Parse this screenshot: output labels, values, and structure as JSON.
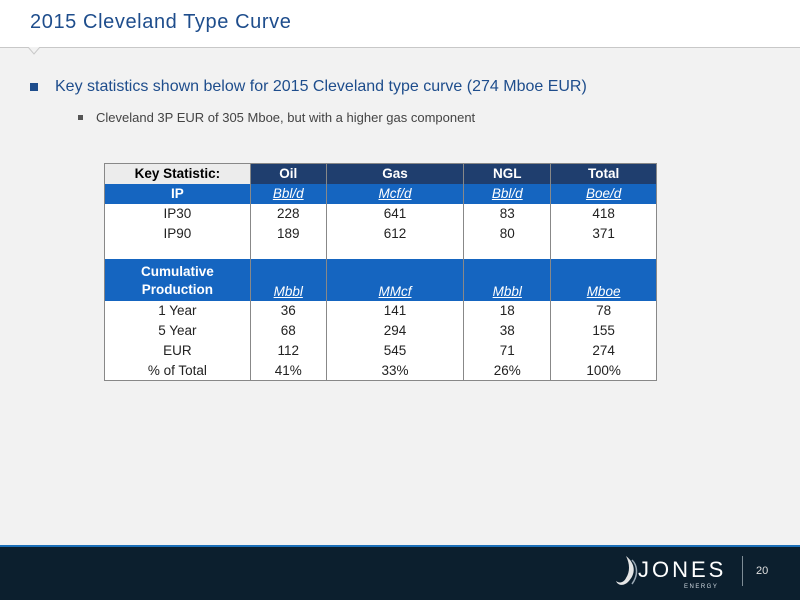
{
  "slide": {
    "title": "2015 Cleveland Type Curve",
    "bullet_main": "Key statistics shown below for 2015 Cleveland type curve (274 Mboe EUR)",
    "bullet_sub": "Cleveland 3P EUR of 305 Mboe, but with a higher gas component"
  },
  "table": {
    "header": [
      "Key Statistic:",
      "Oil",
      "Gas",
      "NGL",
      "Total"
    ],
    "ip_units": [
      "IP",
      "Bbl/d",
      "Mcf/d",
      "Bbl/d",
      "Boe/d"
    ],
    "ip_rows": [
      [
        "IP30",
        "228",
        "641",
        "83",
        "418"
      ],
      [
        "IP90",
        "189",
        "612",
        "80",
        "371"
      ]
    ],
    "cum_units": [
      "Cumulative Production",
      "Mbbl",
      "MMcf",
      "Mbbl",
      "Mboe"
    ],
    "cum_rows": [
      [
        "1 Year",
        "36",
        "141",
        "18",
        "78"
      ],
      [
        "5 Year",
        "68",
        "294",
        "38",
        "155"
      ],
      [
        "EUR",
        "112",
        "545",
        "71",
        "274"
      ],
      [
        "% of Total",
        "41%",
        "33%",
        "26%",
        "100%"
      ]
    ]
  },
  "footer": {
    "logo_name": "JONES",
    "logo_sub": "ENERGY",
    "page_number": "20"
  },
  "colors": {
    "title_blue": "#1e4d8c",
    "header_navy": "#1f3e6e",
    "units_blue": "#1565c0",
    "footer_bg": "#0c1f2e"
  }
}
